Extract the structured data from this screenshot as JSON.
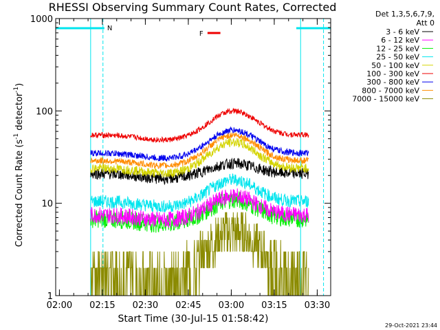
{
  "chart_data": {
    "type": "line",
    "title": "RHESSI Observing Summary Count Rates, Corrected",
    "xlabel": "Start Time (30-Jul-15 01:58:42)",
    "ylabel_main": "Corrected Count Rate (s",
    "ylabel_sup1": "-1",
    "ylabel_mid": " detector",
    "ylabel_sup2": "-1",
    "ylabel_end": ")",
    "yscale": "log",
    "ylim": [
      1,
      1000
    ],
    "xlim_minutes": [
      0,
      96
    ],
    "x_ticks": [
      {
        "label": "02:00",
        "minute": 1.3
      },
      {
        "label": "02:15",
        "minute": 16.3
      },
      {
        "label": "02:30",
        "minute": 31.3
      },
      {
        "label": "02:45",
        "minute": 46.3
      },
      {
        "label": "03:00",
        "minute": 61.3
      },
      {
        "label": "03:15",
        "minute": 76.3
      },
      {
        "label": "03:30",
        "minute": 91.3
      }
    ],
    "y_ticks": [
      {
        "label": "1",
        "value": 1
      },
      {
        "label": "10",
        "value": 10
      },
      {
        "label": "100",
        "value": 100
      },
      {
        "label": "1000",
        "value": 1000
      }
    ],
    "legend": {
      "header1": "Det 1,3,5,6,7,9,",
      "header2": "Att 0",
      "placement": "outside-right"
    },
    "series": [
      {
        "name": "3 - 6 keV",
        "color": "#000000",
        "base": 21,
        "peak": 27,
        "noise": 0.06
      },
      {
        "name": "6 - 12 keV",
        "color": "#ff00ff",
        "base": 7.5,
        "peak": 12,
        "noise": 0.09
      },
      {
        "name": "12 - 25 keV",
        "color": "#00ee00",
        "base": 6.8,
        "peak": 11,
        "noise": 0.1
      },
      {
        "name": "25 - 50 keV",
        "color": "#00e5ee",
        "base": 10.5,
        "peak": 18,
        "noise": 0.07
      },
      {
        "name": "50 - 100 keV",
        "color": "#d4d400",
        "base": 24,
        "peak": 46,
        "noise": 0.05
      },
      {
        "name": "100 - 300 keV",
        "color": "#ee0000",
        "base": 55,
        "peak": 100,
        "noise": 0.03
      },
      {
        "name": "300 - 800 keV",
        "color": "#0000ee",
        "base": 35,
        "peak": 62,
        "noise": 0.035
      },
      {
        "name": "800 - 7000 keV",
        "color": "#ff8c00",
        "base": 29,
        "peak": 55,
        "noise": 0.035
      },
      {
        "name": "7000 - 15000 keV",
        "color": "#8b8b00",
        "base": 2.0,
        "peak": 5,
        "noise": 0.25
      }
    ],
    "data_window_minutes": [
      12.2,
      88.3
    ],
    "lower_gap_minute": 18,
    "flare_peak_minute": 62,
    "annotations": {
      "night_label": "N",
      "flare_label": "F",
      "night_intervals_minutes": [
        [
          0,
          17
        ],
        [
          84,
          96
        ]
      ],
      "flare_interval_minutes": [
        53,
        57.5
      ],
      "night_guides_minutes": [
        0,
        12.2,
        16.5,
        85.5,
        93.5
      ]
    },
    "timestamp": "29-Oct-2021 23:44"
  }
}
